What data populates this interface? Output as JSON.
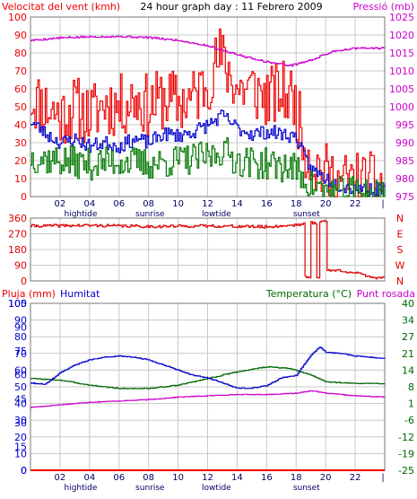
{
  "title": "24 hour graph day : 11 Febrero 2009",
  "colors": {
    "wind_speed": "#ee0000",
    "wind_avg": "#0000cc",
    "wind_low": "#007700",
    "pressure": "#cc00cc",
    "direction": "#dd0000",
    "temperature": "#0000cc",
    "humidity": "#006600",
    "dewpoint": "#cc00cc",
    "rain": "#ee0000",
    "grid": "#c8c8c8",
    "frame": "#777777"
  },
  "x_axis": {
    "ticks": [
      "02",
      "04",
      "06",
      "08",
      "10",
      "12",
      "14",
      "16",
      "18",
      "20",
      "22"
    ],
    "end_marker": "|",
    "events": [
      {
        "label": "hightide",
        "hour": 3.4
      },
      {
        "label": "sunrise",
        "hour": 8.1
      },
      {
        "label": "lowtide",
        "hour": 12.6
      },
      {
        "label": "sunset",
        "hour": 18.7
      }
    ]
  },
  "chart_data": [
    {
      "type": "line",
      "name": "wind_pressure",
      "left_label": "Velocitat del vent (kmh)",
      "right_label": "Pressió (mb)",
      "ylim": [
        0,
        100
      ],
      "y_ticks": [
        "0",
        "10",
        "20",
        "30",
        "40",
        "50",
        "60",
        "70",
        "80",
        "90",
        "100"
      ],
      "y2lim": [
        975,
        1025
      ],
      "y2_ticks": [
        "975",
        "980",
        "985",
        "990",
        "995",
        "1000",
        "1005",
        "1010",
        "1015",
        "1020",
        "1025"
      ],
      "x_range": [
        0,
        24
      ],
      "series": [
        {
          "key": "speed",
          "color_key": "wind_speed",
          "noise": 18,
          "seed": 11,
          "points": [
            [
              0,
              55
            ],
            [
              1,
              50
            ],
            [
              2,
              45
            ],
            [
              3,
              50
            ],
            [
              4,
              45
            ],
            [
              5,
              52
            ],
            [
              6,
              50
            ],
            [
              7,
              55
            ],
            [
              8,
              50
            ],
            [
              9,
              55
            ],
            [
              10,
              52
            ],
            [
              11,
              55
            ],
            [
              12,
              65
            ],
            [
              12.8,
              78
            ],
            [
              13.5,
              68
            ],
            [
              14,
              60
            ],
            [
              15,
              60
            ],
            [
              16,
              55
            ],
            [
              17,
              58
            ],
            [
              17.8,
              55
            ],
            [
              18.5,
              30
            ],
            [
              19,
              20
            ],
            [
              20,
              12
            ],
            [
              21,
              8
            ],
            [
              22,
              8
            ],
            [
              23,
              7
            ],
            [
              24,
              7
            ]
          ]
        },
        {
          "key": "average",
          "color_key": "wind_avg",
          "noise": 4,
          "seed": 23,
          "points": [
            [
              0,
              42
            ],
            [
              1,
              35
            ],
            [
              2,
              30
            ],
            [
              3,
              32
            ],
            [
              4,
              28
            ],
            [
              5,
              30
            ],
            [
              6,
              28
            ],
            [
              7,
              32
            ],
            [
              8,
              30
            ],
            [
              9,
              35
            ],
            [
              10,
              34
            ],
            [
              11,
              36
            ],
            [
              12,
              40
            ],
            [
              13,
              45
            ],
            [
              14,
              38
            ],
            [
              15,
              35
            ],
            [
              16,
              36
            ],
            [
              17,
              35
            ],
            [
              18,
              33
            ],
            [
              18.5,
              22
            ],
            [
              19,
              15
            ],
            [
              20,
              10
            ],
            [
              21,
              6
            ],
            [
              22,
              5
            ],
            [
              23,
              4
            ],
            [
              24,
              4
            ]
          ]
        },
        {
          "key": "low",
          "color_key": "wind_low",
          "noise": 9,
          "seed": 37,
          "points": [
            [
              0,
              22
            ],
            [
              2,
              20
            ],
            [
              4,
              18
            ],
            [
              6,
              20
            ],
            [
              8,
              18
            ],
            [
              10,
              20
            ],
            [
              12,
              22
            ],
            [
              13,
              26
            ],
            [
              14,
              20
            ],
            [
              16,
              18
            ],
            [
              17.8,
              16
            ],
            [
              18.5,
              10
            ],
            [
              19,
              6
            ],
            [
              20,
              3
            ],
            [
              21,
              2
            ],
            [
              22,
              3
            ],
            [
              23,
              3
            ],
            [
              24,
              3
            ]
          ]
        },
        {
          "key": "pressure",
          "color_key": "pressure",
          "noise": 0.25,
          "seed": 5,
          "axis": "right",
          "points": [
            [
              0,
              1018.5
            ],
            [
              2,
              1019.2
            ],
            [
              4,
              1019.5
            ],
            [
              6,
              1019.6
            ],
            [
              8,
              1019.3
            ],
            [
              10,
              1018.5
            ],
            [
              12,
              1017
            ],
            [
              14,
              1014.5
            ],
            [
              16,
              1012.5
            ],
            [
              17.6,
              1011.5
            ],
            [
              19,
              1013
            ],
            [
              20.5,
              1015.5
            ],
            [
              22,
              1016.3
            ],
            [
              24,
              1016.3
            ]
          ]
        }
      ]
    },
    {
      "type": "line",
      "name": "wind_direction",
      "ylim": [
        0,
        360
      ],
      "y_ticks": [
        "0",
        "90",
        "180",
        "270",
        "360"
      ],
      "right_ticks": [
        "N",
        "W",
        "S",
        "E",
        "N"
      ],
      "x_range": [
        0,
        24
      ],
      "series": [
        {
          "key": "direction",
          "color_key": "direction",
          "noise": 8,
          "seed": 41,
          "points": [
            [
              0,
              315
            ],
            [
              4,
              318
            ],
            [
              8,
              312
            ],
            [
              12,
              315
            ],
            [
              16,
              310
            ],
            [
              17.5,
              318
            ],
            [
              18.3,
              325
            ],
            [
              18.55,
              330
            ],
            [
              18.6,
              20
            ],
            [
              18.9,
              20
            ],
            [
              18.95,
              335
            ],
            [
              19.3,
              330
            ],
            [
              19.35,
              25
            ],
            [
              19.5,
              20
            ],
            [
              19.55,
              345
            ],
            [
              20.0,
              340
            ],
            [
              20.1,
              60
            ],
            [
              21,
              60
            ],
            [
              22,
              45
            ],
            [
              23,
              25
            ],
            [
              23.6,
              15
            ],
            [
              24,
              30
            ]
          ]
        }
      ]
    },
    {
      "type": "line",
      "name": "temp_hum_rain",
      "left_label": "Pluja (mm)",
      "center_label": "Humitat",
      "right_label": "Temperatura (°C)",
      "right_label_2": "Punt rosada",
      "ylim": [
        0,
        100
      ],
      "y_ticks": [
        "0",
        "10",
        "20",
        "30",
        "40",
        "50",
        "60",
        "70",
        "80",
        "90",
        "100"
      ],
      "y_ticks_left2": [
        "0",
        "15",
        "30",
        "45",
        "60",
        "75",
        "90",
        "105"
      ],
      "y2lim": [
        -25,
        40
      ],
      "y2_ticks": [
        "-25",
        "-19",
        "-12",
        "-6",
        "1",
        "8",
        "14",
        "21",
        "27",
        "34",
        "40"
      ],
      "x_range": [
        0,
        24
      ],
      "series": [
        {
          "key": "humidity",
          "color_key": "humidity",
          "noise": 0.25,
          "seed": 3,
          "points": [
            [
              0,
              55
            ],
            [
              2,
              54
            ],
            [
              4,
              51
            ],
            [
              6,
              49
            ],
            [
              8,
              49
            ],
            [
              10,
              51
            ],
            [
              12,
              55
            ],
            [
              14,
              59
            ],
            [
              16,
              62
            ],
            [
              17.5,
              61
            ],
            [
              19,
              57
            ],
            [
              20,
              53
            ],
            [
              22,
              52
            ],
            [
              24,
              52
            ]
          ]
        },
        {
          "key": "temperature",
          "color_key": "temperature",
          "axis": "right",
          "noise": 0.15,
          "seed": 9,
          "points": [
            [
              0,
              9
            ],
            [
              1,
              8.5
            ],
            [
              2,
              13
            ],
            [
              3,
              16
            ],
            [
              4,
              18
            ],
            [
              5,
              19
            ],
            [
              6,
              19.5
            ],
            [
              7,
              19
            ],
            [
              8,
              18
            ],
            [
              9,
              16
            ],
            [
              10,
              14
            ],
            [
              11,
              12
            ],
            [
              12,
              11
            ],
            [
              13,
              9
            ],
            [
              14,
              7
            ],
            [
              15,
              7
            ],
            [
              16,
              8
            ],
            [
              17,
              11
            ],
            [
              18,
              12
            ],
            [
              19,
              20
            ],
            [
              19.6,
              23
            ],
            [
              20,
              21
            ],
            [
              21,
              20.5
            ],
            [
              22,
              19.5
            ],
            [
              23,
              19
            ],
            [
              24,
              18.5
            ]
          ]
        },
        {
          "key": "dewpoint",
          "color_key": "dewpoint",
          "axis": "right",
          "noise": 0.12,
          "seed": 17,
          "points": [
            [
              0,
              -0.5
            ],
            [
              2,
              0.5
            ],
            [
              4,
              1.5
            ],
            [
              6,
              2
            ],
            [
              8,
              2.5
            ],
            [
              10,
              3.5
            ],
            [
              12,
              4
            ],
            [
              14,
              4.5
            ],
            [
              16,
              4.5
            ],
            [
              18,
              5
            ],
            [
              19,
              6
            ],
            [
              20,
              5
            ],
            [
              22,
              4
            ],
            [
              24,
              3.5
            ]
          ]
        },
        {
          "key": "rain",
          "color_key": "rain",
          "noise": 0,
          "seed": 1,
          "points": [
            [
              0,
              0
            ],
            [
              24,
              0
            ]
          ]
        }
      ]
    }
  ]
}
